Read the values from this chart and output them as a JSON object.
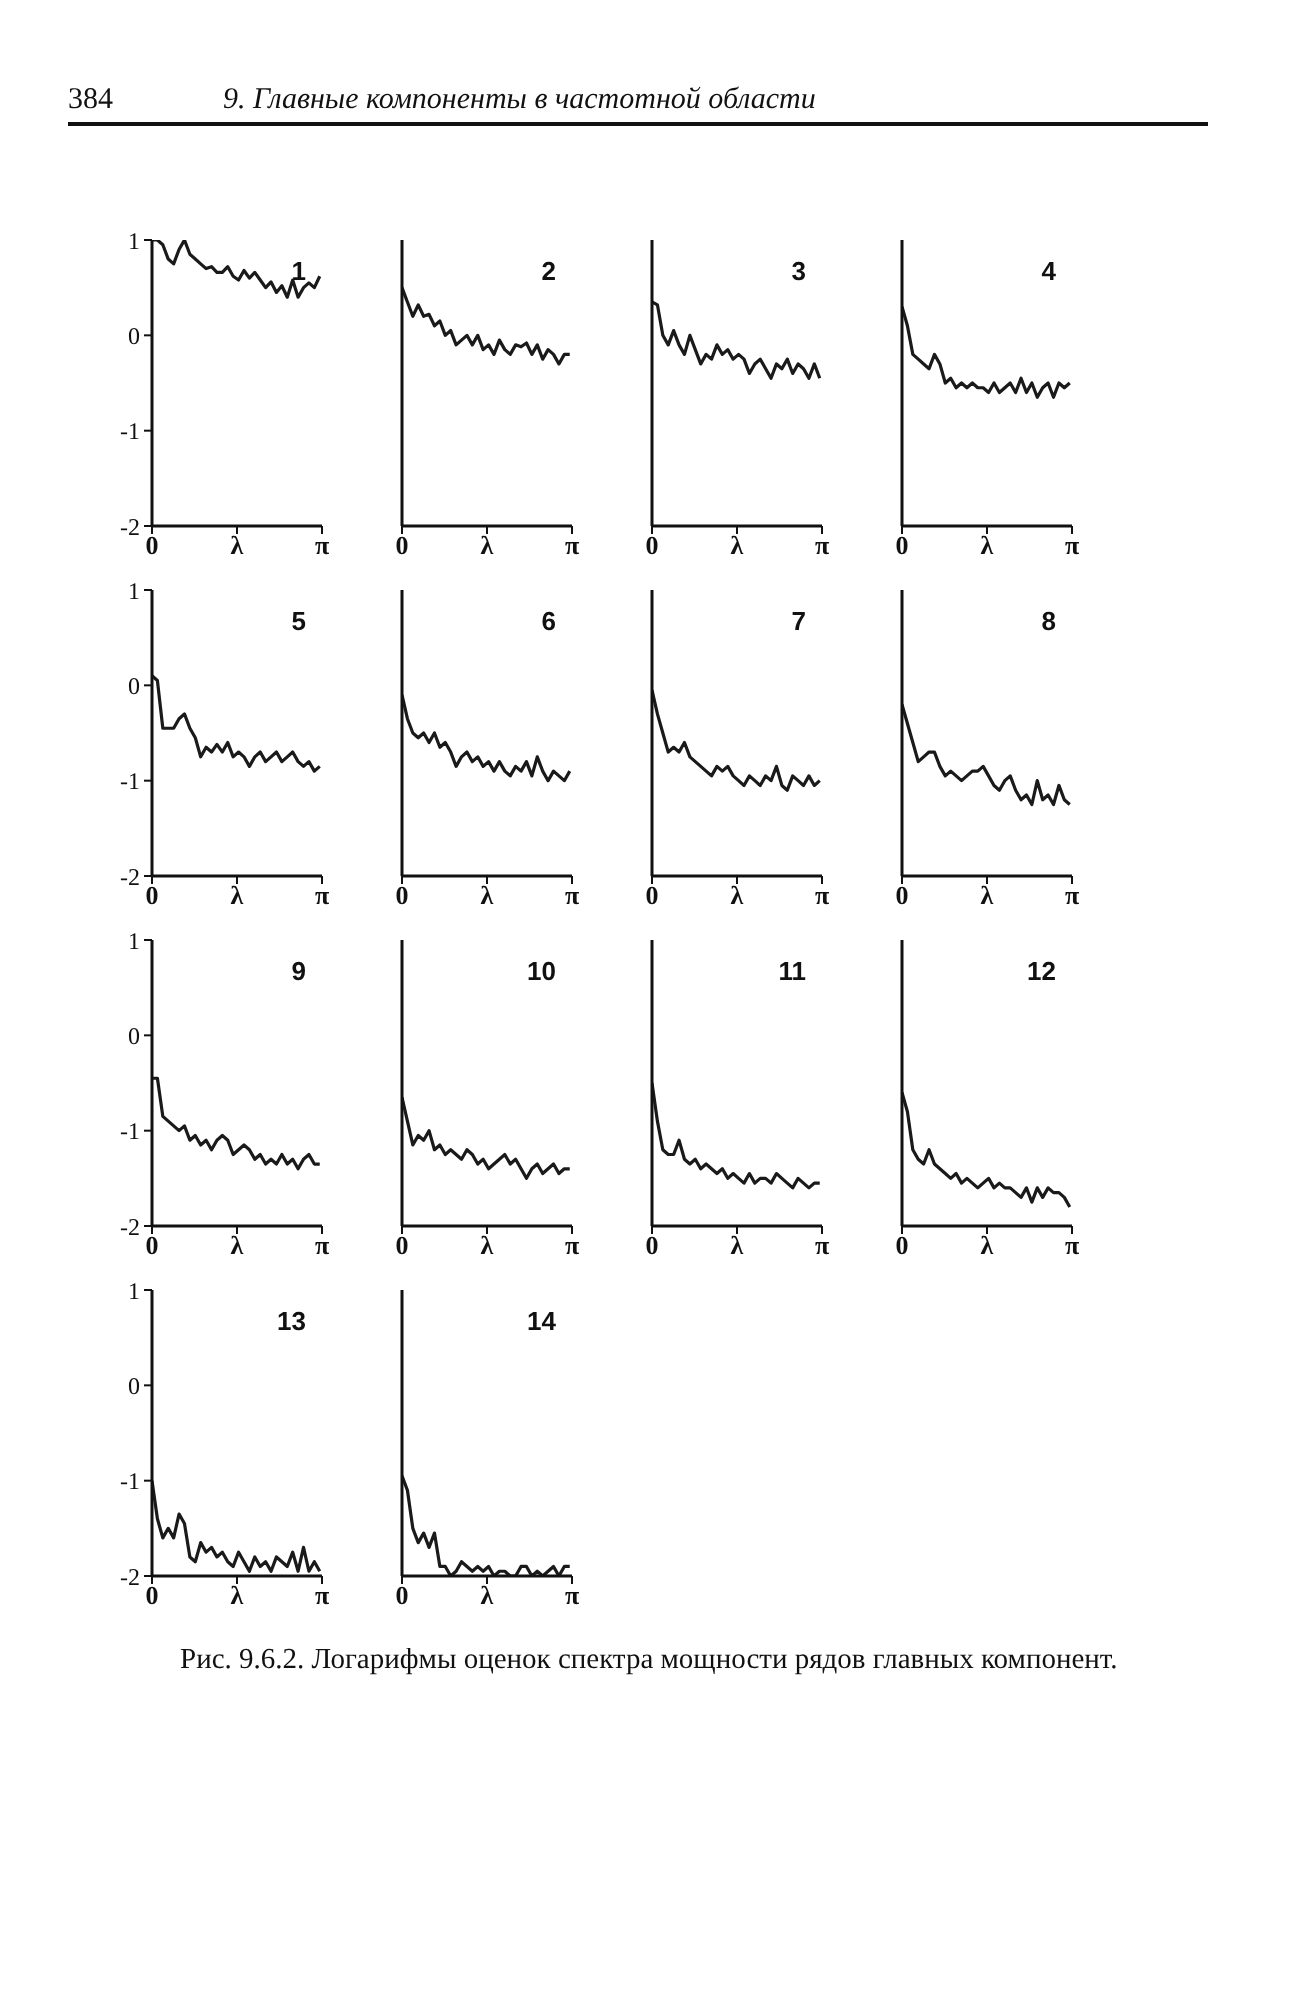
{
  "chart_data": [
    {
      "type": "line",
      "title": "1",
      "annotations": [
        "384",
        "9. Главные компоненты в частотной области"
      ],
      "x": [
        0,
        0.1,
        0.2,
        0.3,
        0.4,
        0.5,
        0.6,
        0.7,
        0.8,
        0.9,
        1.0,
        1.1,
        1.2,
        1.3,
        1.4,
        1.5,
        1.6,
        1.7,
        1.8,
        1.9,
        2.0,
        2.1,
        2.2,
        2.3,
        2.4,
        2.5,
        2.6,
        2.7,
        2.8,
        2.9,
        3.0,
        3.1
      ],
      "xlim": [
        0,
        3.1416
      ],
      "xticks": [
        {
          "value": 0,
          "label": "0"
        },
        {
          "value": 1.5708,
          "label": "λ"
        },
        {
          "value": 3.1416,
          "label": "π"
        }
      ],
      "ylim": [
        -2,
        1
      ],
      "yticks": [
        -2,
        -1,
        0,
        1
      ],
      "tick_labels": "y_and_x",
      "series": [
        {
          "color": "#1a1a1a",
          "values": [
            1.0,
            1.0,
            0.95,
            0.8,
            0.75,
            0.9,
            1.0,
            0.85,
            0.8,
            0.75,
            0.7,
            0.72,
            0.66,
            0.66,
            0.72,
            0.62,
            0.58,
            0.68,
            0.6,
            0.66,
            0.58,
            0.5,
            0.56,
            0.45,
            0.52,
            0.4,
            0.58,
            0.4,
            0.5,
            0.55,
            0.5,
            0.62
          ]
        }
      ]
    },
    {
      "type": "line",
      "title": "2",
      "x": [
        0,
        0.1,
        0.2,
        0.3,
        0.4,
        0.5,
        0.6,
        0.7,
        0.8,
        0.9,
        1.0,
        1.1,
        1.2,
        1.3,
        1.4,
        1.5,
        1.6,
        1.7,
        1.8,
        1.9,
        2.0,
        2.1,
        2.2,
        2.3,
        2.4,
        2.5,
        2.6,
        2.7,
        2.8,
        2.9,
        3.0,
        3.1
      ],
      "xlim": [
        0,
        3.1416
      ],
      "xticks": [
        {
          "value": 0,
          "label": "0"
        },
        {
          "value": 1.5708,
          "label": "λ"
        },
        {
          "value": 3.1416,
          "label": "π"
        }
      ],
      "ylim": [
        -2,
        1
      ],
      "yticks": [
        -2,
        -1,
        0,
        1
      ],
      "tick_labels": "x",
      "series": [
        {
          "color": "#1a1a1a",
          "values": [
            0.5,
            0.35,
            0.2,
            0.32,
            0.2,
            0.22,
            0.1,
            0.15,
            0.0,
            0.05,
            -0.1,
            -0.05,
            0.0,
            -0.1,
            0.0,
            -0.15,
            -0.1,
            -0.2,
            -0.05,
            -0.15,
            -0.2,
            -0.1,
            -0.12,
            -0.08,
            -0.2,
            -0.1,
            -0.25,
            -0.15,
            -0.2,
            -0.3,
            -0.2,
            -0.2
          ]
        }
      ]
    },
    {
      "type": "line",
      "title": "3",
      "x": [
        0,
        0.1,
        0.2,
        0.3,
        0.4,
        0.5,
        0.6,
        0.7,
        0.8,
        0.9,
        1.0,
        1.1,
        1.2,
        1.3,
        1.4,
        1.5,
        1.6,
        1.7,
        1.8,
        1.9,
        2.0,
        2.1,
        2.2,
        2.3,
        2.4,
        2.5,
        2.6,
        2.7,
        2.8,
        2.9,
        3.0,
        3.1
      ],
      "xlim": [
        0,
        3.1416
      ],
      "xticks": [
        {
          "value": 0,
          "label": "0"
        },
        {
          "value": 1.5708,
          "label": "λ"
        },
        {
          "value": 3.1416,
          "label": "π"
        }
      ],
      "ylim": [
        -2,
        1
      ],
      "yticks": [
        -2,
        -1,
        0,
        1
      ],
      "tick_labels": "x",
      "series": [
        {
          "color": "#1a1a1a",
          "values": [
            0.35,
            0.32,
            0.0,
            -0.1,
            0.05,
            -0.1,
            -0.2,
            0.0,
            -0.15,
            -0.3,
            -0.2,
            -0.25,
            -0.1,
            -0.2,
            -0.15,
            -0.25,
            -0.2,
            -0.25,
            -0.4,
            -0.3,
            -0.25,
            -0.35,
            -0.45,
            -0.3,
            -0.35,
            -0.25,
            -0.4,
            -0.3,
            -0.35,
            -0.45,
            -0.3,
            -0.45
          ]
        }
      ]
    },
    {
      "type": "line",
      "title": "4",
      "x": [
        0,
        0.1,
        0.2,
        0.3,
        0.4,
        0.5,
        0.6,
        0.7,
        0.8,
        0.9,
        1.0,
        1.1,
        1.2,
        1.3,
        1.4,
        1.5,
        1.6,
        1.7,
        1.8,
        1.9,
        2.0,
        2.1,
        2.2,
        2.3,
        2.4,
        2.5,
        2.6,
        2.7,
        2.8,
        2.9,
        3.0,
        3.1
      ],
      "xlim": [
        0,
        3.1416
      ],
      "xticks": [
        {
          "value": 0,
          "label": "0"
        },
        {
          "value": 1.5708,
          "label": "λ"
        },
        {
          "value": 3.1416,
          "label": "π"
        }
      ],
      "ylim": [
        -2,
        1
      ],
      "yticks": [
        -2,
        -1,
        0,
        1
      ],
      "tick_labels": "x",
      "series": [
        {
          "color": "#1a1a1a",
          "values": [
            0.3,
            0.1,
            -0.2,
            -0.25,
            -0.3,
            -0.35,
            -0.2,
            -0.3,
            -0.5,
            -0.45,
            -0.55,
            -0.5,
            -0.55,
            -0.5,
            -0.55,
            -0.55,
            -0.6,
            -0.5,
            -0.6,
            -0.55,
            -0.5,
            -0.6,
            -0.45,
            -0.6,
            -0.5,
            -0.65,
            -0.55,
            -0.5,
            -0.65,
            -0.5,
            -0.55,
            -0.5
          ]
        }
      ]
    },
    {
      "type": "line",
      "title": "5",
      "x": [
        0,
        0.1,
        0.2,
        0.3,
        0.4,
        0.5,
        0.6,
        0.7,
        0.8,
        0.9,
        1.0,
        1.1,
        1.2,
        1.3,
        1.4,
        1.5,
        1.6,
        1.7,
        1.8,
        1.9,
        2.0,
        2.1,
        2.2,
        2.3,
        2.4,
        2.5,
        2.6,
        2.7,
        2.8,
        2.9,
        3.0,
        3.1
      ],
      "xlim": [
        0,
        3.1416
      ],
      "xticks": [
        {
          "value": 0,
          "label": "0"
        },
        {
          "value": 1.5708,
          "label": "λ"
        },
        {
          "value": 3.1416,
          "label": "π"
        }
      ],
      "ylim": [
        -2,
        1
      ],
      "yticks": [
        -2,
        -1,
        0,
        1
      ],
      "series": [
        {
          "color": "#1a1a1a",
          "values": [
            0.1,
            0.05,
            -0.45,
            -0.45,
            -0.45,
            -0.35,
            -0.3,
            -0.45,
            -0.55,
            -0.75,
            -0.65,
            -0.7,
            -0.62,
            -0.7,
            -0.6,
            -0.75,
            -0.7,
            -0.75,
            -0.85,
            -0.75,
            -0.7,
            -0.8,
            -0.75,
            -0.7,
            -0.8,
            -0.75,
            -0.7,
            -0.8,
            -0.85,
            -0.8,
            -0.9,
            -0.85
          ]
        }
      ]
    },
    {
      "type": "line",
      "title": "6",
      "x": [
        0,
        0.1,
        0.2,
        0.3,
        0.4,
        0.5,
        0.6,
        0.7,
        0.8,
        0.9,
        1.0,
        1.1,
        1.2,
        1.3,
        1.4,
        1.5,
        1.6,
        1.7,
        1.8,
        1.9,
        2.0,
        2.1,
        2.2,
        2.3,
        2.4,
        2.5,
        2.6,
        2.7,
        2.8,
        2.9,
        3.0,
        3.1
      ],
      "xlim": [
        0,
        3.1416
      ],
      "xticks": [
        {
          "value": 0,
          "label": "0"
        },
        {
          "value": 1.5708,
          "label": "λ"
        },
        {
          "value": 3.1416,
          "label": "π"
        }
      ],
      "ylim": [
        -2,
        1
      ],
      "yticks": [
        -2,
        -1,
        0,
        1
      ],
      "tick_labels": "x",
      "series": [
        {
          "color": "#1a1a1a",
          "values": [
            -0.1,
            -0.35,
            -0.5,
            -0.55,
            -0.5,
            -0.6,
            -0.5,
            -0.65,
            -0.6,
            -0.7,
            -0.85,
            -0.75,
            -0.7,
            -0.8,
            -0.75,
            -0.85,
            -0.8,
            -0.9,
            -0.8,
            -0.9,
            -0.95,
            -0.85,
            -0.9,
            -0.8,
            -0.95,
            -0.75,
            -0.9,
            -1.0,
            -0.9,
            -0.95,
            -1.0,
            -0.9
          ]
        }
      ]
    },
    {
      "type": "line",
      "title": "7",
      "x": [
        0,
        0.1,
        0.2,
        0.3,
        0.4,
        0.5,
        0.6,
        0.7,
        0.8,
        0.9,
        1.0,
        1.1,
        1.2,
        1.3,
        1.4,
        1.5,
        1.6,
        1.7,
        1.8,
        1.9,
        2.0,
        2.1,
        2.2,
        2.3,
        2.4,
        2.5,
        2.6,
        2.7,
        2.8,
        2.9,
        3.0,
        3.1
      ],
      "xlim": [
        0,
        3.1416
      ],
      "xticks": [
        {
          "value": 0,
          "label": "0"
        },
        {
          "value": 1.5708,
          "label": "λ"
        },
        {
          "value": 3.1416,
          "label": "π"
        }
      ],
      "ylim": [
        -2,
        1
      ],
      "yticks": [
        -2,
        -1,
        0,
        1
      ],
      "tick_labels": "x",
      "series": [
        {
          "color": "#1a1a1a",
          "values": [
            -0.05,
            -0.3,
            -0.5,
            -0.7,
            -0.65,
            -0.7,
            -0.6,
            -0.75,
            -0.8,
            -0.85,
            -0.9,
            -0.95,
            -0.85,
            -0.9,
            -0.85,
            -0.95,
            -1.0,
            -1.05,
            -0.95,
            -1.0,
            -1.05,
            -0.95,
            -1.0,
            -0.85,
            -1.05,
            -1.1,
            -0.95,
            -1.0,
            -1.05,
            -0.95,
            -1.05,
            -1.0
          ]
        }
      ]
    },
    {
      "type": "line",
      "title": "8",
      "x": [
        0,
        0.1,
        0.2,
        0.3,
        0.4,
        0.5,
        0.6,
        0.7,
        0.8,
        0.9,
        1.0,
        1.1,
        1.2,
        1.3,
        1.4,
        1.5,
        1.6,
        1.7,
        1.8,
        1.9,
        2.0,
        2.1,
        2.2,
        2.3,
        2.4,
        2.5,
        2.6,
        2.7,
        2.8,
        2.9,
        3.0,
        3.1
      ],
      "xlim": [
        0,
        3.1416
      ],
      "xticks": [
        {
          "value": 0,
          "label": "0"
        },
        {
          "value": 1.5708,
          "label": "λ"
        },
        {
          "value": 3.1416,
          "label": "π"
        }
      ],
      "ylim": [
        -2,
        1
      ],
      "yticks": [
        -2,
        -1,
        0,
        1
      ],
      "tick_labels": "x",
      "series": [
        {
          "color": "#1a1a1a",
          "values": [
            -0.2,
            -0.4,
            -0.6,
            -0.8,
            -0.75,
            -0.7,
            -0.7,
            -0.85,
            -0.95,
            -0.9,
            -0.95,
            -1.0,
            -0.95,
            -0.9,
            -0.9,
            -0.85,
            -0.95,
            -1.05,
            -1.1,
            -1.0,
            -0.95,
            -1.1,
            -1.2,
            -1.15,
            -1.25,
            -1.0,
            -1.2,
            -1.15,
            -1.25,
            -1.05,
            -1.2,
            -1.25
          ]
        }
      ]
    },
    {
      "type": "line",
      "title": "9",
      "x": [
        0,
        0.1,
        0.2,
        0.3,
        0.4,
        0.5,
        0.6,
        0.7,
        0.8,
        0.9,
        1.0,
        1.1,
        1.2,
        1.3,
        1.4,
        1.5,
        1.6,
        1.7,
        1.8,
        1.9,
        2.0,
        2.1,
        2.2,
        2.3,
        2.4,
        2.5,
        2.6,
        2.7,
        2.8,
        2.9,
        3.0,
        3.1
      ],
      "xlim": [
        0,
        3.1416
      ],
      "xticks": [
        {
          "value": 0,
          "label": "0"
        },
        {
          "value": 1.5708,
          "label": "λ"
        },
        {
          "value": 3.1416,
          "label": "π"
        }
      ],
      "ylim": [
        -2,
        1
      ],
      "yticks": [
        -2,
        -1,
        0,
        1
      ],
      "series": [
        {
          "color": "#1a1a1a",
          "values": [
            -0.45,
            -0.45,
            -0.85,
            -0.9,
            -0.95,
            -1.0,
            -0.95,
            -1.1,
            -1.05,
            -1.15,
            -1.1,
            -1.2,
            -1.1,
            -1.05,
            -1.1,
            -1.25,
            -1.2,
            -1.15,
            -1.2,
            -1.3,
            -1.25,
            -1.35,
            -1.3,
            -1.35,
            -1.25,
            -1.35,
            -1.3,
            -1.4,
            -1.3,
            -1.25,
            -1.35,
            -1.35
          ]
        }
      ]
    },
    {
      "type": "line",
      "title": "10",
      "x": [
        0,
        0.1,
        0.2,
        0.3,
        0.4,
        0.5,
        0.6,
        0.7,
        0.8,
        0.9,
        1.0,
        1.1,
        1.2,
        1.3,
        1.4,
        1.5,
        1.6,
        1.7,
        1.8,
        1.9,
        2.0,
        2.1,
        2.2,
        2.3,
        2.4,
        2.5,
        2.6,
        2.7,
        2.8,
        2.9,
        3.0,
        3.1
      ],
      "xlim": [
        0,
        3.1416
      ],
      "xticks": [
        {
          "value": 0,
          "label": "0"
        },
        {
          "value": 1.5708,
          "label": "λ"
        },
        {
          "value": 3.1416,
          "label": "π"
        }
      ],
      "ylim": [
        -2,
        1
      ],
      "yticks": [
        -2,
        -1,
        0,
        1
      ],
      "tick_labels": "x",
      "series": [
        {
          "color": "#1a1a1a",
          "values": [
            -0.65,
            -0.9,
            -1.15,
            -1.05,
            -1.1,
            -1.0,
            -1.2,
            -1.15,
            -1.25,
            -1.2,
            -1.25,
            -1.3,
            -1.2,
            -1.25,
            -1.35,
            -1.3,
            -1.4,
            -1.35,
            -1.3,
            -1.25,
            -1.35,
            -1.3,
            -1.4,
            -1.5,
            -1.4,
            -1.35,
            -1.45,
            -1.4,
            -1.35,
            -1.45,
            -1.4,
            -1.4
          ]
        }
      ]
    },
    {
      "type": "line",
      "title": "11",
      "x": [
        0,
        0.1,
        0.2,
        0.3,
        0.4,
        0.5,
        0.6,
        0.7,
        0.8,
        0.9,
        1.0,
        1.1,
        1.2,
        1.3,
        1.4,
        1.5,
        1.6,
        1.7,
        1.8,
        1.9,
        2.0,
        2.1,
        2.2,
        2.3,
        2.4,
        2.5,
        2.6,
        2.7,
        2.8,
        2.9,
        3.0,
        3.1
      ],
      "xlim": [
        0,
        3.1416
      ],
      "xticks": [
        {
          "value": 0,
          "label": "0"
        },
        {
          "value": 1.5708,
          "label": "λ"
        },
        {
          "value": 3.1416,
          "label": "π"
        }
      ],
      "ylim": [
        -2,
        1
      ],
      "yticks": [
        -2,
        -1,
        0,
        1
      ],
      "tick_labels": "x",
      "series": [
        {
          "color": "#1a1a1a",
          "values": [
            -0.5,
            -0.9,
            -1.2,
            -1.25,
            -1.25,
            -1.1,
            -1.3,
            -1.35,
            -1.3,
            -1.4,
            -1.35,
            -1.4,
            -1.45,
            -1.4,
            -1.5,
            -1.45,
            -1.5,
            -1.55,
            -1.45,
            -1.55,
            -1.5,
            -1.5,
            -1.55,
            -1.45,
            -1.5,
            -1.55,
            -1.6,
            -1.5,
            -1.55,
            -1.6,
            -1.55,
            -1.55
          ]
        }
      ]
    },
    {
      "type": "line",
      "title": "12",
      "x": [
        0,
        0.1,
        0.2,
        0.3,
        0.4,
        0.5,
        0.6,
        0.7,
        0.8,
        0.9,
        1.0,
        1.1,
        1.2,
        1.3,
        1.4,
        1.5,
        1.6,
        1.7,
        1.8,
        1.9,
        2.0,
        2.1,
        2.2,
        2.3,
        2.4,
        2.5,
        2.6,
        2.7,
        2.8,
        2.9,
        3.0,
        3.1
      ],
      "xlim": [
        0,
        3.1416
      ],
      "xticks": [
        {
          "value": 0,
          "label": "0"
        },
        {
          "value": 1.5708,
          "label": "λ"
        },
        {
          "value": 3.1416,
          "label": "π"
        }
      ],
      "ylim": [
        -2,
        1
      ],
      "yticks": [
        -2,
        -1,
        0,
        1
      ],
      "tick_labels": "x",
      "series": [
        {
          "color": "#1a1a1a",
          "values": [
            -0.6,
            -0.8,
            -1.2,
            -1.3,
            -1.35,
            -1.2,
            -1.35,
            -1.4,
            -1.45,
            -1.5,
            -1.45,
            -1.55,
            -1.5,
            -1.55,
            -1.6,
            -1.55,
            -1.5,
            -1.6,
            -1.55,
            -1.6,
            -1.6,
            -1.65,
            -1.7,
            -1.6,
            -1.75,
            -1.6,
            -1.7,
            -1.6,
            -1.65,
            -1.65,
            -1.7,
            -1.8
          ]
        }
      ]
    },
    {
      "type": "line",
      "title": "13",
      "x": [
        0,
        0.1,
        0.2,
        0.3,
        0.4,
        0.5,
        0.6,
        0.7,
        0.8,
        0.9,
        1.0,
        1.1,
        1.2,
        1.3,
        1.4,
        1.5,
        1.6,
        1.7,
        1.8,
        1.9,
        2.0,
        2.1,
        2.2,
        2.3,
        2.4,
        2.5,
        2.6,
        2.7,
        2.8,
        2.9,
        3.0,
        3.1
      ],
      "xlim": [
        0,
        3.1416
      ],
      "xticks": [
        {
          "value": 0,
          "label": "0"
        },
        {
          "value": 1.5708,
          "label": "λ"
        },
        {
          "value": 3.1416,
          "label": "π"
        }
      ],
      "ylim": [
        -2,
        1
      ],
      "yticks": [
        -2,
        -1,
        0,
        1
      ],
      "series": [
        {
          "color": "#1a1a1a",
          "values": [
            -1.0,
            -1.4,
            -1.6,
            -1.5,
            -1.6,
            -1.35,
            -1.45,
            -1.8,
            -1.85,
            -1.65,
            -1.75,
            -1.7,
            -1.8,
            -1.75,
            -1.85,
            -1.9,
            -1.75,
            -1.85,
            -1.95,
            -1.8,
            -1.9,
            -1.85,
            -1.95,
            -1.8,
            -1.85,
            -1.9,
            -1.75,
            -1.95,
            -1.7,
            -1.95,
            -1.85,
            -1.95
          ]
        }
      ]
    },
    {
      "type": "line",
      "title": "14",
      "annotations": [
        "Рис. 9.6.2. Логарифмы оценок спектра мощности рядов главных компонент."
      ],
      "x": [
        0,
        0.1,
        0.2,
        0.3,
        0.4,
        0.5,
        0.6,
        0.7,
        0.8,
        0.9,
        1.0,
        1.1,
        1.2,
        1.3,
        1.4,
        1.5,
        1.6,
        1.7,
        1.8,
        1.9,
        2.0,
        2.1,
        2.2,
        2.3,
        2.4,
        2.5,
        2.6,
        2.7,
        2.8,
        2.9,
        3.0,
        3.1
      ],
      "xlim": [
        0,
        3.1416
      ],
      "xticks": [
        {
          "value": 0,
          "label": "0"
        },
        {
          "value": 1.5708,
          "label": "λ"
        },
        {
          "value": 3.1416,
          "label": "π"
        }
      ],
      "ylim": [
        -2,
        1
      ],
      "yticks": [
        -2,
        -1,
        0,
        1
      ],
      "tick_labels": "x",
      "series": [
        {
          "color": "#1a1a1a",
          "values": [
            -0.95,
            -1.1,
            -1.5,
            -1.65,
            -1.55,
            -1.7,
            -1.55,
            -1.9,
            -1.9,
            -2.0,
            -1.95,
            -1.85,
            -1.9,
            -1.95,
            -1.9,
            -1.95,
            -1.9,
            -2.0,
            -1.95,
            -1.95,
            -2.0,
            -2.0,
            -1.9,
            -1.9,
            -2.0,
            -1.95,
            -2.0,
            -1.95,
            -1.9,
            -2.0,
            -1.9,
            -1.9
          ]
        }
      ]
    }
  ]
}
